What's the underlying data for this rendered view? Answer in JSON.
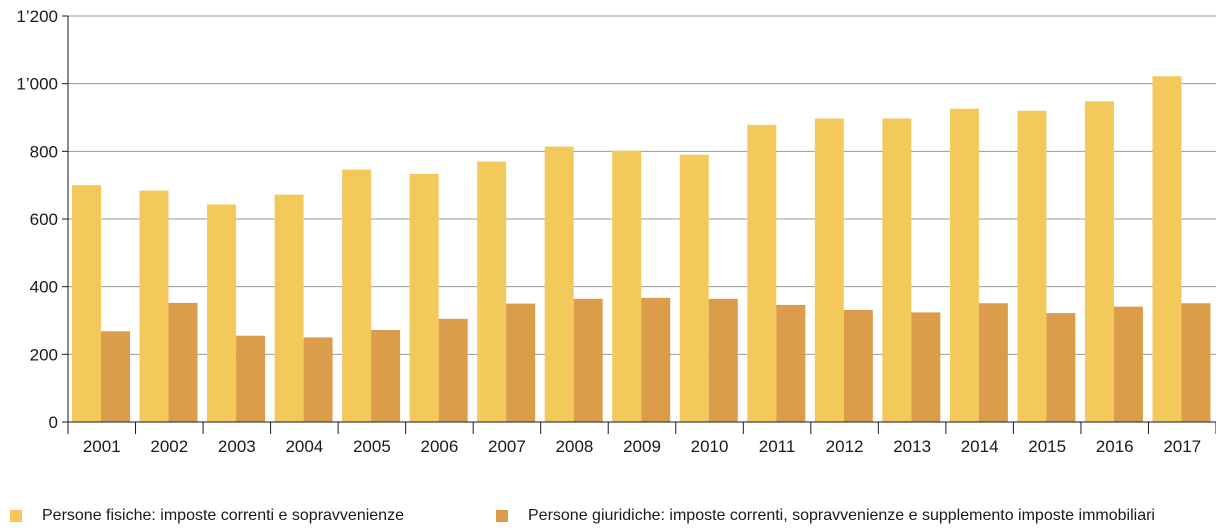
{
  "chart_data": {
    "type": "bar",
    "ylabel": "",
    "ylim": [
      0,
      1200
    ],
    "yticks": [
      0,
      200,
      400,
      600,
      800,
      1000,
      1200
    ],
    "ytick_labels": [
      "0",
      "200",
      "400",
      "600",
      "800",
      "1’000",
      "1’200"
    ],
    "grid": true,
    "categories": [
      "2001",
      "2002",
      "2003",
      "2004",
      "2005",
      "2006",
      "2007",
      "2008",
      "2009",
      "2010",
      "2011",
      "2012",
      "2013",
      "2014",
      "2015",
      "2016",
      "2017"
    ],
    "series": [
      {
        "name": "Persone fisiche: imposte correnti e sopravvenienze",
        "color": "#f2c95a",
        "values": [
          700,
          684,
          643,
          672,
          746,
          733,
          770,
          814,
          802,
          790,
          878,
          897,
          897,
          926,
          920,
          948,
          1022
        ]
      },
      {
        "name": "Persone giuridiche: imposte correnti, sopravvenienze e supplemento imposte immobiliari",
        "color": "#dc9d4a",
        "values": [
          268,
          352,
          255,
          250,
          272,
          305,
          350,
          364,
          367,
          364,
          346,
          331,
          324,
          351,
          322,
          341,
          351
        ]
      }
    ]
  }
}
